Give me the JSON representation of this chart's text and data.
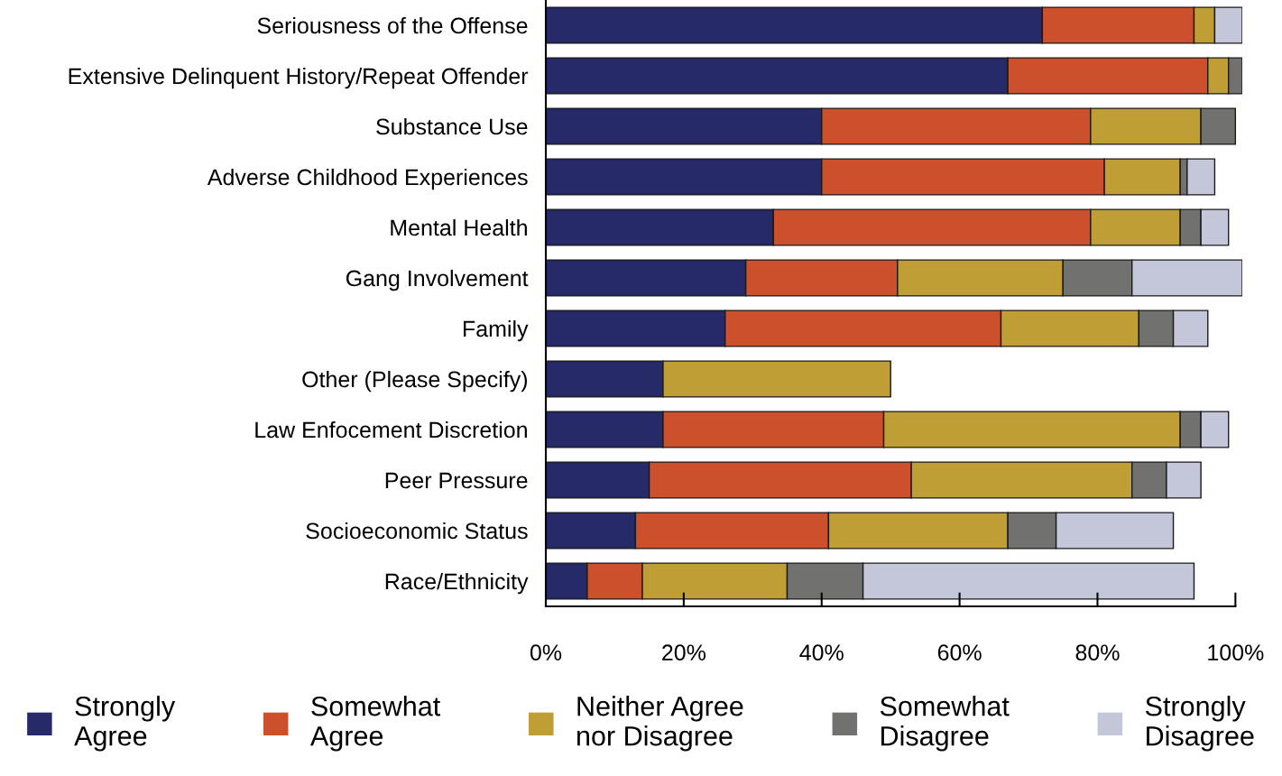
{
  "chart_data": {
    "type": "bar",
    "orientation": "horizontal",
    "stacked": true,
    "categories": [
      "Seriousness of the Offense",
      "Extensive Delinquent History/Repeat Offender",
      "Substance Use",
      "Adverse Childhood Experiences",
      "Mental Health",
      "Gang Involvement",
      "Family",
      "Other (Please Specify)",
      "Law Enfocement Discretion",
      "Peer Pressure",
      "Socioeconomic Status",
      "Race/Ethnicity"
    ],
    "series": [
      {
        "name": "Strongly\nAgree",
        "color": "#262a68",
        "values": [
          72,
          67,
          40,
          40,
          33,
          29,
          26,
          17,
          17,
          15,
          13,
          6
        ]
      },
      {
        "name": "Somewhat\nAgree",
        "color": "#cd502d",
        "values": [
          22,
          29,
          39,
          41,
          46,
          22,
          40,
          null,
          32,
          38,
          28,
          8
        ]
      },
      {
        "name": "Neither Agree\nnor Disagree",
        "color": "#bf9e36",
        "values": [
          3,
          3,
          16,
          11,
          13,
          24,
          20,
          33,
          43,
          32,
          26,
          21
        ]
      },
      {
        "name": "Somewhat\nDisagree",
        "color": "#717270",
        "values": [
          null,
          2,
          5,
          1,
          3,
          10,
          5,
          null,
          3,
          5,
          7,
          11
        ]
      },
      {
        "name": "Strongly\nDisagree",
        "color": "#c4c6da",
        "values": [
          4,
          null,
          null,
          4,
          4,
          16,
          5,
          null,
          4,
          5,
          17,
          48
        ]
      }
    ],
    "xlim": [
      0,
      101
    ],
    "xticks": [
      {
        "value": 0,
        "label": "0%"
      },
      {
        "value": 20,
        "label": "20%"
      },
      {
        "value": 40,
        "label": "40%"
      },
      {
        "value": 60,
        "label": "60%"
      },
      {
        "value": 80,
        "label": "80%"
      },
      {
        "value": 100,
        "label": "100%"
      }
    ],
    "grid": false,
    "legend": "bottom"
  }
}
